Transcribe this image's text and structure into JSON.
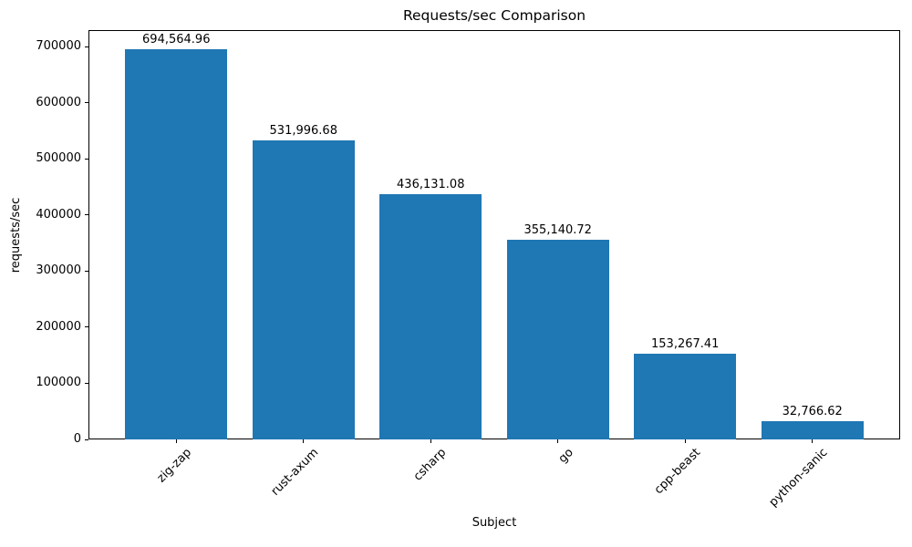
{
  "chart_data": {
    "type": "bar",
    "title": "Requests/sec Comparison",
    "xlabel": "Subject",
    "ylabel": "requests/sec",
    "categories": [
      "zig-zap",
      "rust-axum",
      "csharp",
      "go",
      "cpp-beast",
      "python-sanic"
    ],
    "values": [
      694564.96,
      531996.68,
      436131.08,
      355140.72,
      153267.41,
      32766.62
    ],
    "value_labels": [
      "694,564.96",
      "531,996.68",
      "436,131.08",
      "355,140.72",
      "153,267.41",
      "32,766.62"
    ],
    "yticks": [
      0,
      100000,
      200000,
      300000,
      400000,
      500000,
      600000,
      700000
    ],
    "ytick_labels": [
      "0",
      "100000",
      "200000",
      "300000",
      "400000",
      "500000",
      "600000",
      "700000"
    ],
    "ylim": [
      0,
      729293
    ],
    "bar_color": "#1f77b4",
    "axis_color": "#000000",
    "xtick_rotation_deg": 45,
    "bar_width_axis_units": 0.8,
    "grid": false,
    "legend": null
  }
}
